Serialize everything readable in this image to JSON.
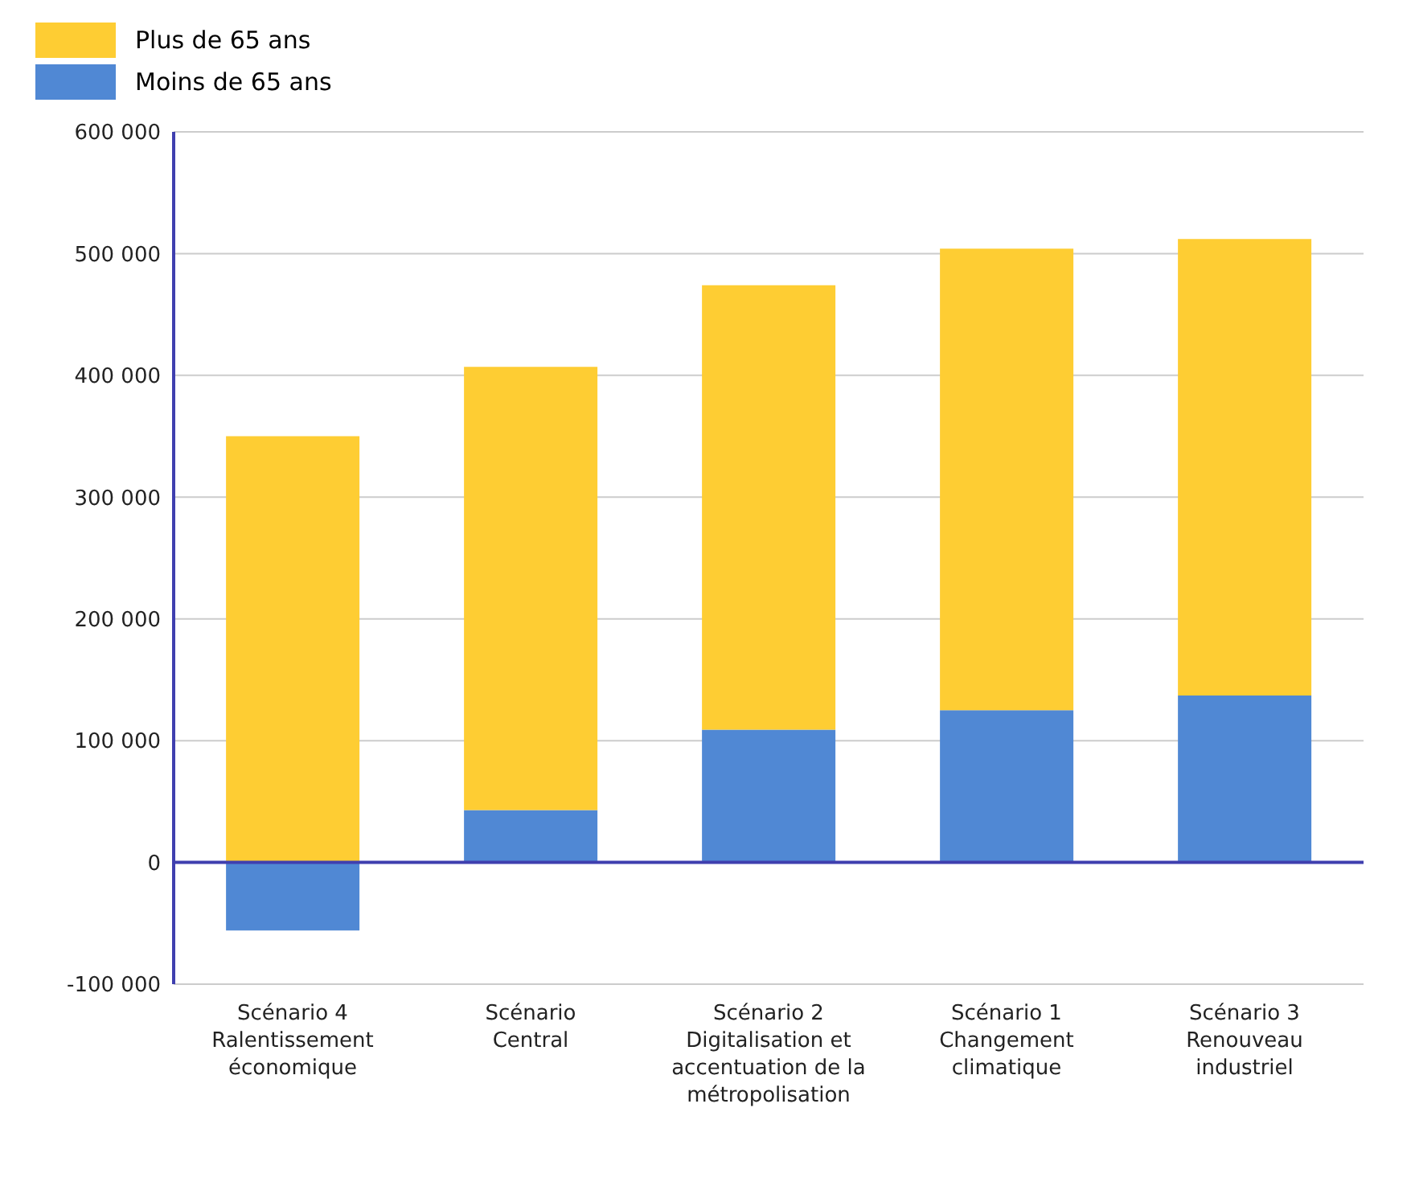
{
  "chart_data": {
    "type": "bar",
    "stacked": true,
    "categories": [
      "Scénario 4\nRalentissement\néconomique",
      "Scénario\nCentral",
      "Scénario 2\nDigitalisation et\naccentuation de la\nmétropolisation",
      "Scénario 1\nChangement\nclimatique",
      "Scénario 3\nRenouveau\nindustriel"
    ],
    "series": [
      {
        "name": "Moins de 65 ans",
        "color": "#5088d4",
        "values": [
          -56000,
          43000,
          109000,
          125000,
          137000
        ]
      },
      {
        "name": "Plus de 65 ans",
        "color": "#fecd33",
        "values": [
          350000,
          364000,
          365000,
          379000,
          375000
        ]
      }
    ],
    "ylim": [
      -100000,
      600000
    ],
    "yticks": [
      {
        "value": -100000,
        "label": "-100 000"
      },
      {
        "value": 0,
        "label": "0"
      },
      {
        "value": 100000,
        "label": "100 000"
      },
      {
        "value": 200000,
        "label": "200 000"
      },
      {
        "value": 300000,
        "label": "300 000"
      },
      {
        "value": 400000,
        "label": "400 000"
      },
      {
        "value": 500000,
        "label": "500 000"
      },
      {
        "value": 600000,
        "label": "600 000"
      }
    ],
    "ref_lines": [
      {
        "axis": "y",
        "value": 0,
        "color": "#3f3faf"
      }
    ],
    "grid": "y",
    "legend": "top left"
  }
}
